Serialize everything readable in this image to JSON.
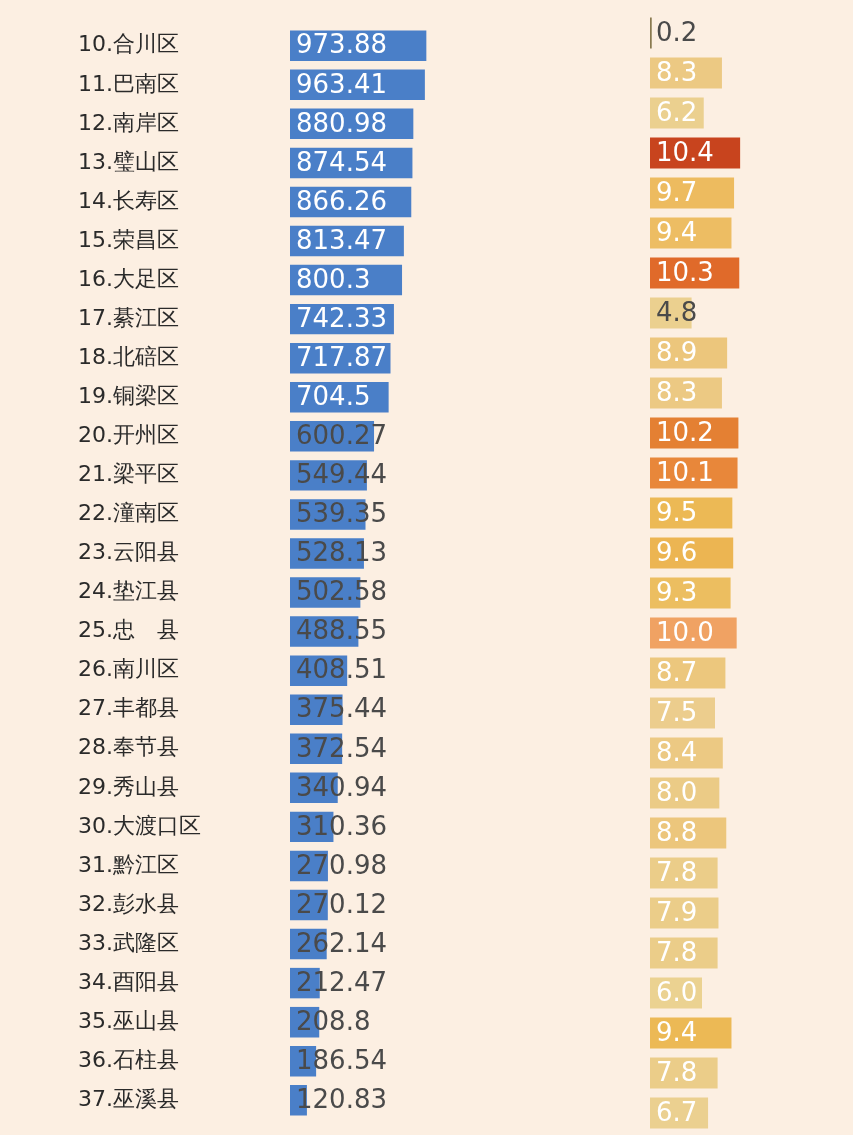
{
  "chart_data": [
    {
      "type": "bar",
      "orientation": "horizontal",
      "categories": [
        "10.合川区",
        "11.巴南区",
        "12.南岸区",
        "13.璧山区",
        "14.长寿区",
        "15.荣昌区",
        "16.大足区",
        "17.綦江区",
        "18.北碚区",
        "19.铜梁区",
        "20.开州区",
        "21.梁平区",
        "22.潼南区",
        "23.云阳县",
        "24.垫江县",
        "25.忠　县",
        "26.南川区",
        "27.丰都县",
        "28.奉节县",
        "29.秀山县",
        "30.大渡口区",
        "31.黔江区",
        "32.彭水县",
        "33.武隆区",
        "34.酉阳县",
        "35.巫山县",
        "36.石柱县",
        "37.巫溪县"
      ],
      "values": [
        973.88,
        963.41,
        880.98,
        874.54,
        866.26,
        813.47,
        800.3,
        742.33,
        717.87,
        704.5,
        600.27,
        549.44,
        539.35,
        528.13,
        502.58,
        488.55,
        408.51,
        375.44,
        372.54,
        340.94,
        310.36,
        270.98,
        270.12,
        262.14,
        212.47,
        208.8,
        186.54,
        120.83
      ],
      "color": "#4a7fc8",
      "data_labels": true,
      "tick_labels": "y",
      "grid": false,
      "legend": false
    },
    {
      "type": "bar",
      "orientation": "horizontal",
      "categories": [
        null,
        null,
        null,
        null,
        null,
        null,
        null,
        null,
        null,
        null,
        null,
        null,
        null,
        null,
        null,
        null,
        null,
        null,
        null,
        null,
        null,
        null,
        null,
        null,
        null,
        null,
        null,
        null
      ],
      "values": [
        0.2,
        8.3,
        6.2,
        10.4,
        9.7,
        9.4,
        10.3,
        4.8,
        8.9,
        8.3,
        10.2,
        10.1,
        9.5,
        9.6,
        9.3,
        10.0,
        8.7,
        7.5,
        8.4,
        8.0,
        8.8,
        7.8,
        7.9,
        7.8,
        6.0,
        9.4,
        7.8,
        6.7
      ],
      "value_labels": [
        "0.2",
        "8.3",
        "6.2",
        "10.4",
        "9.7",
        "9.4",
        "10.3",
        "4.8",
        "8.9",
        "8.3",
        "10.2",
        "10.1",
        "9.5",
        "9.6",
        "9.3",
        "10.0",
        "8.7",
        "7.5",
        "8.4",
        "8.0",
        "8.8",
        "7.8",
        "7.9",
        "7.8",
        "6.0",
        "9.4",
        "7.8",
        "6.7"
      ],
      "colors": [
        "#8a7a50",
        "#ecc983",
        "#ebd08f",
        "#c8441e",
        "#edbb5f",
        "#edbd63",
        "#e06a2a",
        "#ebd08f",
        "#ecc67c",
        "#ecc983",
        "#e48033",
        "#e8873a",
        "#ecb955",
        "#ecb552",
        "#ecbe60",
        "#f0a263",
        "#ecc77d",
        "#eccd8d",
        "#ecc983",
        "#ebcb86",
        "#ecc67c",
        "#ebcd89",
        "#ebcd89",
        "#ebcd89",
        "#ebd291",
        "#ecb955",
        "#ebcd89",
        "#ebd090"
      ],
      "tick_labels": false,
      "grid": false,
      "legend": false
    }
  ]
}
